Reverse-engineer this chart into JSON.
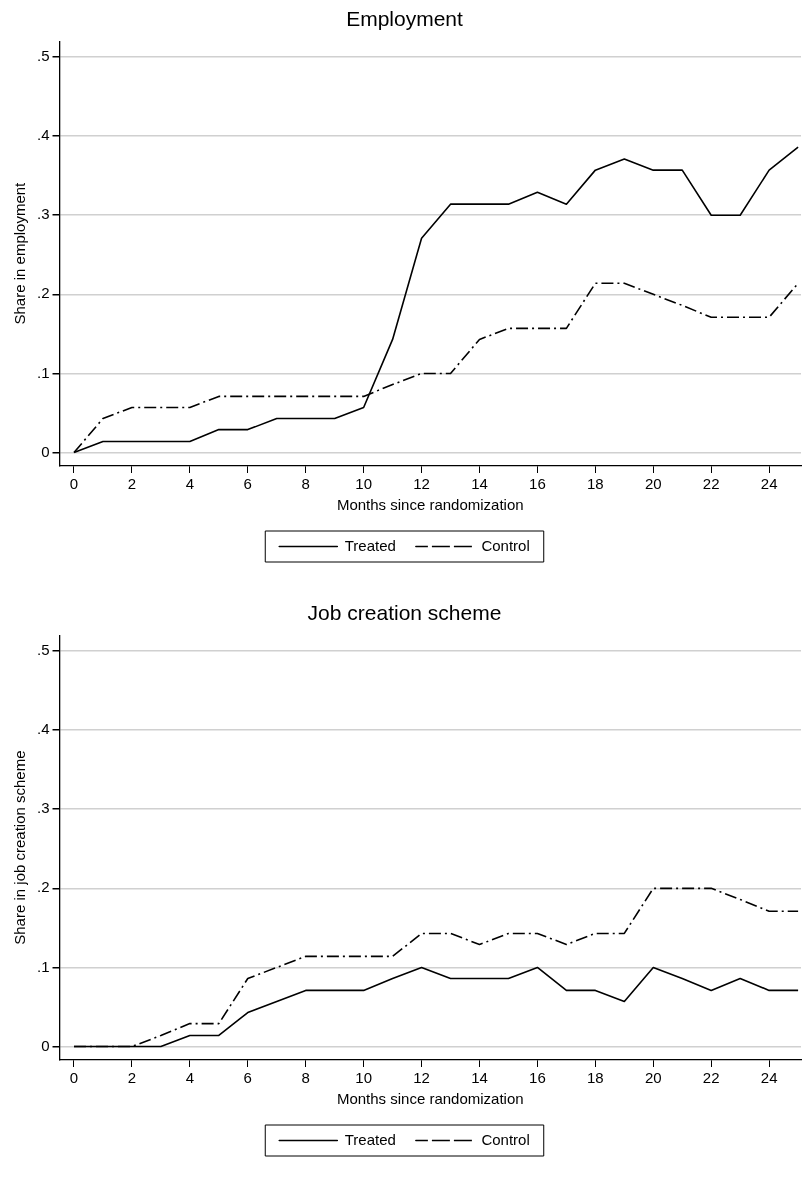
{
  "chart_data": [
    {
      "type": "line",
      "title": "Employment",
      "xlabel": "Months since randomization",
      "ylabel": "Share in employment",
      "x": [
        0,
        1,
        2,
        3,
        4,
        5,
        6,
        7,
        8,
        9,
        10,
        11,
        12,
        13,
        14,
        15,
        16,
        17,
        18,
        19,
        20,
        21,
        22,
        23,
        24,
        25
      ],
      "series": [
        {
          "name": "Treated",
          "color": "#000000",
          "line_style": "solid",
          "values": [
            0,
            0.014,
            0.014,
            0.014,
            0.014,
            0.029,
            0.029,
            0.043,
            0.043,
            0.043,
            0.057,
            0.143,
            0.271,
            0.314,
            0.314,
            0.314,
            0.329,
            0.314,
            0.357,
            0.371,
            0.357,
            0.357,
            0.3,
            0.3,
            0.357,
            0.386
          ]
        },
        {
          "name": "Control",
          "color": "#000000",
          "line_style": "dashed",
          "values": [
            0,
            0.043,
            0.057,
            0.057,
            0.057,
            0.071,
            0.071,
            0.071,
            0.071,
            0.071,
            0.071,
            0.086,
            0.1,
            0.1,
            0.143,
            0.157,
            0.157,
            0.157,
            0.214,
            0.214,
            0.2,
            0.186,
            0.171,
            0.171,
            0.171,
            0.214
          ]
        }
      ],
      "xlim": [
        -0.5,
        25.1
      ],
      "xticks": [
        0,
        2,
        4,
        6,
        8,
        10,
        12,
        14,
        16,
        18,
        20,
        22,
        24
      ],
      "ylim": [
        -0.017,
        0.52
      ],
      "yticks": [
        {
          "value": 0,
          "label": "0"
        },
        {
          "value": 0.1,
          "label": ".1"
        },
        {
          "value": 0.2,
          "label": ".2"
        },
        {
          "value": 0.3,
          "label": ".3"
        },
        {
          "value": 0.4,
          "label": ".4"
        },
        {
          "value": 0.5,
          "label": ".5"
        }
      ],
      "grid": "y",
      "legend": "bottom",
      "marker": "none"
    },
    {
      "type": "line",
      "title": "Job creation scheme",
      "xlabel": "Months since randomization",
      "ylabel": "Share in job creation scheme",
      "x": [
        0,
        1,
        2,
        3,
        4,
        5,
        6,
        7,
        8,
        9,
        10,
        11,
        12,
        13,
        14,
        15,
        16,
        17,
        18,
        19,
        20,
        21,
        22,
        23,
        24,
        25
      ],
      "series": [
        {
          "name": "Treated",
          "color": "#000000",
          "line_style": "solid",
          "values": [
            0,
            0,
            0,
            0,
            0.014,
            0.014,
            0.043,
            0.057,
            0.071,
            0.071,
            0.071,
            0.086,
            0.1,
            0.086,
            0.086,
            0.086,
            0.1,
            0.071,
            0.071,
            0.057,
            0.1,
            0.086,
            0.071,
            0.086,
            0.071,
            0.071
          ]
        },
        {
          "name": "Control",
          "color": "#000000",
          "line_style": "dashed",
          "values": [
            0,
            0,
            0,
            0.014,
            0.029,
            0.029,
            0.086,
            0.1,
            0.114,
            0.114,
            0.114,
            0.114,
            0.143,
            0.143,
            0.129,
            0.143,
            0.143,
            0.129,
            0.143,
            0.143,
            0.2,
            0.2,
            0.2,
            0.186,
            0.171,
            0.171
          ]
        }
      ],
      "xlim": [
        -0.5,
        25.1
      ],
      "xticks": [
        0,
        2,
        4,
        6,
        8,
        10,
        12,
        14,
        16,
        18,
        20,
        22,
        24
      ],
      "ylim": [
        -0.017,
        0.52
      ],
      "yticks": [
        {
          "value": 0,
          "label": "0"
        },
        {
          "value": 0.1,
          "label": ".1"
        },
        {
          "value": 0.2,
          "label": ".2"
        },
        {
          "value": 0.3,
          "label": ".3"
        },
        {
          "value": 0.4,
          "label": ".4"
        },
        {
          "value": 0.5,
          "label": ".5"
        }
      ],
      "grid": "y",
      "legend": "bottom",
      "marker": "none"
    }
  ]
}
